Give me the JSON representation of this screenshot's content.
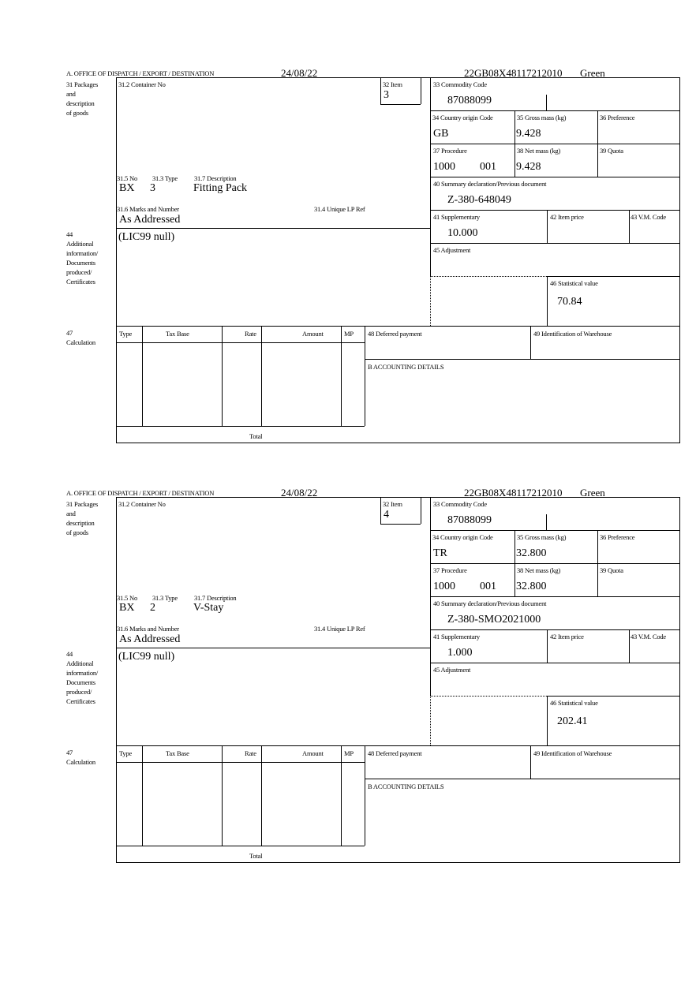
{
  "labels": {
    "office": "A. OFFICE OF DISPATCH / EXPORT / DESTINATION",
    "packages": "31 Packages\nand\ndescription\nof goods",
    "container_no": "31.2 Container No",
    "item": "32 Item",
    "commodity_code": "33 Commodity Code",
    "country_origin": "34 Country origin Code",
    "gross_mass": "35 Gross mass (kg)",
    "preference": "36 Preference",
    "procedure": "37 Procedure",
    "net_mass": "38 Net mass (kg)",
    "quota": "39 Quota",
    "summary_decl": "40 Summary declaration/Previous document",
    "pkg_no": "31.5 No",
    "pkg_type": "31.3 Type",
    "pkg_desc": "31.7 Description",
    "marks": "31.6 Marks and Number",
    "unique_lp": "31.4 Unique LP Ref",
    "supplementary": "41 Supplementary",
    "item_price": "42 Item price",
    "vm_code": "43 V.M. Code",
    "additional_info": "44\nAdditional\ninformation/\nDocuments\nproduced/\nCertificates",
    "adjustment": "45 Adjustment",
    "statistical_value": "46 Statistical value",
    "calculation": "47\nCalculation",
    "col_type": "Type",
    "col_tax_base": "Tax Base",
    "col_rate": "Rate",
    "col_amount": "Amount",
    "col_mp": "MP",
    "total": "Total",
    "deferred_payment": "48 Deferred payment",
    "warehouse": "49 Identification of Warehouse",
    "accounting": "B ACCOUNTING DETAILS"
  },
  "forms": [
    {
      "date": "24/08/22",
      "reference": "22GB08X48117212010",
      "route": "Green",
      "item": "3",
      "commodity_code": "87088099",
      "country_origin": "GB",
      "gross_mass": "9.428",
      "procedure": "1000",
      "procedure_ext": "001",
      "net_mass": "9.428",
      "summary_decl": "Z-380-648049",
      "pkg_no": "BX",
      "pkg_type": "3",
      "pkg_desc": "Fitting Pack",
      "marks": "As Addressed",
      "supplementary": "10.000",
      "additional_info": "(LIC99 null)",
      "statistical_value": "70.84"
    },
    {
      "date": "24/08/22",
      "reference": "22GB08X48117212010",
      "route": "Green",
      "item": "4",
      "commodity_code": "87088099",
      "country_origin": "TR",
      "gross_mass": "32.800",
      "procedure": "1000",
      "procedure_ext": "001",
      "net_mass": "32.800",
      "summary_decl": "Z-380-SMO2021000",
      "pkg_no": "BX",
      "pkg_type": "2",
      "pkg_desc": "V-Stay",
      "marks": "As Addressed",
      "supplementary": "1.000",
      "additional_info": "(LIC99 null)",
      "statistical_value": "202.41"
    }
  ]
}
